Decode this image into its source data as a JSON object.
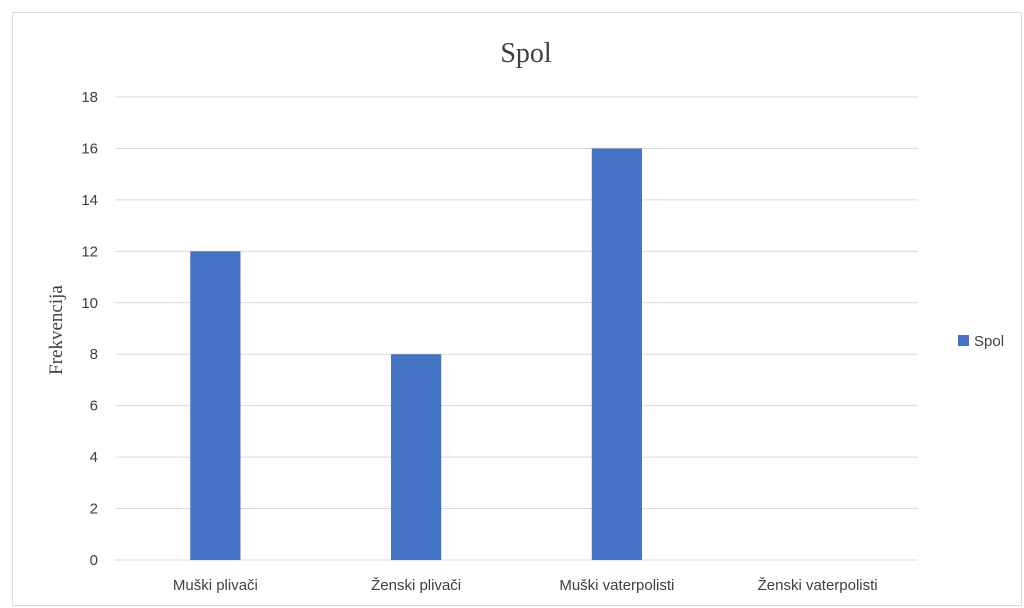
{
  "chart_data": {
    "type": "bar",
    "title": "Spol",
    "xlabel": "",
    "ylabel": "Frekvencija",
    "categories": [
      "Muški plivači",
      "Ženski plivači",
      "Muški vaterpolisti",
      "Ženski vaterpolisti"
    ],
    "series": [
      {
        "name": "Spol",
        "values": [
          12,
          8,
          16,
          0
        ],
        "color": "#4472c4"
      }
    ],
    "ylim": [
      0,
      18
    ],
    "yticks": [
      "0",
      "2",
      "4",
      "6",
      "8",
      "10",
      "12",
      "14",
      "16",
      "18"
    ],
    "grid": true,
    "legend_position": "right"
  }
}
